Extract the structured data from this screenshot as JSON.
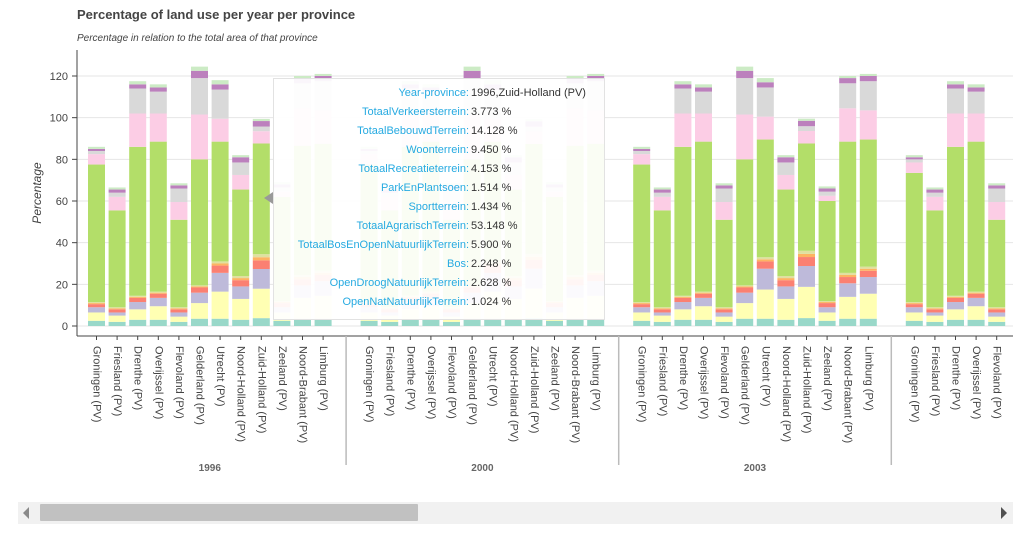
{
  "chart_data": {
    "type": "bar",
    "stacked": true,
    "title": "Percentage of land use per year per province",
    "subtitle": "Percentage in relation to the total area of that province",
    "ylabel": "Percentage",
    "xlabel": "",
    "ylim": [
      0,
      130
    ],
    "y_ticks": [
      0,
      20,
      40,
      60,
      80,
      100,
      120
    ],
    "grid": true,
    "series_names": [
      "TotaalVerkeersterrein",
      "TotaalBebouwdTerrein",
      "Woonterrein",
      "TotaalRecreatieterrein",
      "ParkEnPlantsoen",
      "Sportterrein",
      "TotaalAgrarischTerrein",
      "TotaalBosEnOpenNatuurlijkTerrein",
      "Bos",
      "OpenDroogNatuurlijkTerrein",
      "OpenNatNatuurlijkTerrein"
    ],
    "series_colors": [
      "#99d8c9",
      "#ffffb3",
      "#bebada",
      "#fb8072",
      "#fdb462",
      "#e0e0a0",
      "#b3de69",
      "#fccde5",
      "#d9d9d9",
      "#bc80bd",
      "#ccebc5"
    ],
    "groups": [
      {
        "year": "1996",
        "provinces": [
          {
            "name": "Groningen (PV)",
            "values": [
              2.5,
              4.0,
              2.5,
              1.5,
              0.5,
              0.5,
              66.0,
              5.0,
              1.5,
              1.0,
              1.0
            ]
          },
          {
            "name": "Friesland (PV)",
            "values": [
              2.0,
              3.0,
              1.5,
              1.5,
              0.5,
              0.5,
              46.5,
              6.5,
              2.0,
              1.5,
              1.0
            ]
          },
          {
            "name": "Drenthe (PV)",
            "values": [
              3.0,
              5.0,
              3.5,
              2.0,
              0.5,
              0.5,
              71.5,
              16.0,
              12.0,
              2.0,
              1.5
            ]
          },
          {
            "name": "Overijssel (PV)",
            "values": [
              3.0,
              6.5,
              4.0,
              2.0,
              0.5,
              0.5,
              72.0,
              13.5,
              10.5,
              2.0,
              1.5
            ]
          },
          {
            "name": "Flevoland (PV)",
            "values": [
              2.0,
              2.5,
              2.0,
              1.5,
              0.5,
              0.5,
              42.0,
              8.5,
              6.5,
              1.5,
              1.0
            ]
          },
          {
            "name": "Gelderland (PV)",
            "values": [
              3.5,
              7.5,
              5.0,
              2.5,
              0.5,
              0.5,
              60.5,
              21.5,
              17.5,
              3.5,
              2.0
            ]
          },
          {
            "name": "Utrecht (PV)",
            "values": [
              3.5,
              13.0,
              9.0,
              3.5,
              1.0,
              1.0,
              57.5,
              11.0,
              14.0,
              2.5,
              2.0
            ]
          },
          {
            "name": "Noord-Holland (PV)",
            "values": [
              3.0,
              10.0,
              6.0,
              3.0,
              1.0,
              1.0,
              41.5,
              7.0,
              6.0,
              2.5,
              1.0
            ]
          },
          {
            "name": "Zuid-Holland (PV)",
            "values": [
              3.773,
              14.128,
              9.45,
              4.153,
              1.514,
              1.434,
              53.148,
              5.9,
              2.248,
              2.628,
              1.024
            ]
          },
          {
            "name": "Zeeland (PV)",
            "values": [
              2.5,
              4.0,
              2.5,
              2.0,
              0.5,
              0.5,
              50.0,
              2.5,
              2.0,
              1.5,
              1.0
            ]
          },
          {
            "name": "Noord-Brabant (PV)",
            "values": [
              3.5,
              10.0,
              6.0,
              3.0,
              1.0,
              1.0,
              62.0,
              18.0,
              12.0,
              2.5,
              1.0
            ]
          },
          {
            "name": "Limburg (PV)",
            "values": [
              3.5,
              11.0,
              7.0,
              3.0,
              1.0,
              1.0,
              61.0,
              16.0,
              14.0,
              2.5,
              1.0
            ]
          }
        ]
      },
      {
        "year": "2000",
        "provinces": [
          {
            "name": "Groningen (PV)",
            "values": [
              2.5,
              4.0,
              2.5,
              1.5,
              0.5,
              0.5,
              66.0,
              5.0,
              1.5,
              1.0,
              1.0
            ]
          },
          {
            "name": "Friesland (PV)",
            "values": [
              2.0,
              3.0,
              1.5,
              1.5,
              0.5,
              0.5,
              46.5,
              6.5,
              2.0,
              1.5,
              1.0
            ]
          },
          {
            "name": "Drenthe (PV)",
            "values": [
              3.0,
              5.0,
              3.5,
              2.0,
              0.5,
              0.5,
              71.5,
              16.0,
              12.0,
              2.0,
              1.5
            ]
          },
          {
            "name": "Overijssel (PV)",
            "values": [
              3.0,
              6.5,
              4.0,
              2.0,
              0.5,
              0.5,
              72.0,
              13.5,
              10.5,
              2.0,
              1.5
            ]
          },
          {
            "name": "Flevoland (PV)",
            "values": [
              2.0,
              2.5,
              2.0,
              1.5,
              0.5,
              0.5,
              42.0,
              8.5,
              6.5,
              1.5,
              1.0
            ]
          },
          {
            "name": "Gelderland (PV)",
            "values": [
              3.5,
              7.5,
              5.0,
              2.5,
              0.5,
              0.5,
              60.5,
              21.5,
              17.5,
              3.5,
              2.0
            ]
          },
          {
            "name": "Utrecht (PV)",
            "values": [
              3.5,
              13.0,
              9.0,
              3.5,
              1.0,
              1.0,
              57.5,
              11.0,
              14.0,
              2.5,
              2.0
            ]
          },
          {
            "name": "Noord-Holland (PV)",
            "values": [
              3.0,
              10.0,
              6.0,
              3.0,
              1.0,
              1.0,
              41.5,
              7.0,
              6.0,
              2.5,
              1.0
            ]
          },
          {
            "name": "Zuid-Holland (PV)",
            "values": [
              3.8,
              14.2,
              9.5,
              4.2,
              1.5,
              1.4,
              52.8,
              6.0,
              2.3,
              2.6,
              1.0
            ]
          },
          {
            "name": "Zeeland (PV)",
            "values": [
              2.5,
              4.0,
              2.5,
              2.0,
              0.5,
              0.5,
              50.0,
              2.5,
              2.0,
              1.5,
              1.0
            ]
          },
          {
            "name": "Noord-Brabant (PV)",
            "values": [
              3.5,
              10.0,
              6.0,
              3.0,
              1.0,
              1.0,
              62.0,
              18.0,
              12.0,
              2.5,
              1.0
            ]
          },
          {
            "name": "Limburg (PV)",
            "values": [
              3.5,
              11.0,
              7.0,
              3.0,
              1.0,
              1.0,
              61.0,
              16.0,
              14.0,
              2.5,
              1.0
            ]
          }
        ]
      },
      {
        "year": "2003",
        "provinces": [
          {
            "name": "Groningen (PV)",
            "values": [
              2.5,
              4.0,
              2.5,
              1.5,
              0.5,
              0.5,
              66.0,
              5.0,
              1.5,
              1.0,
              1.0
            ]
          },
          {
            "name": "Friesland (PV)",
            "values": [
              2.0,
              3.0,
              1.5,
              1.5,
              0.5,
              0.5,
              46.5,
              6.5,
              2.0,
              1.5,
              1.0
            ]
          },
          {
            "name": "Drenthe (PV)",
            "values": [
              3.0,
              5.0,
              3.5,
              2.0,
              0.5,
              0.5,
              71.5,
              16.0,
              12.0,
              2.0,
              1.5
            ]
          },
          {
            "name": "Overijssel (PV)",
            "values": [
              3.0,
              6.5,
              4.0,
              2.0,
              0.5,
              0.5,
              72.0,
              13.5,
              10.5,
              2.0,
              1.5
            ]
          },
          {
            "name": "Flevoland (PV)",
            "values": [
              2.0,
              2.5,
              2.0,
              1.5,
              0.5,
              0.5,
              42.0,
              8.5,
              6.5,
              1.5,
              1.0
            ]
          },
          {
            "name": "Gelderland (PV)",
            "values": [
              3.5,
              7.5,
              5.0,
              2.5,
              0.5,
              0.5,
              60.5,
              21.5,
              17.5,
              3.5,
              2.0
            ]
          },
          {
            "name": "Utrecht (PV)",
            "values": [
              3.5,
              14.0,
              10.0,
              3.5,
              1.0,
              1.0,
              56.5,
              11.0,
              14.0,
              2.5,
              2.0
            ]
          },
          {
            "name": "Noord-Holland (PV)",
            "values": [
              3.0,
              10.0,
              6.0,
              3.0,
              1.0,
              1.0,
              41.5,
              7.0,
              6.0,
              2.5,
              1.0
            ]
          },
          {
            "name": "Zuid-Holland (PV)",
            "values": [
              3.8,
              15.0,
              10.0,
              4.3,
              1.5,
              1.5,
              51.5,
              6.0,
              2.3,
              2.6,
              1.0
            ]
          },
          {
            "name": "Zeeland (PV)",
            "values": [
              2.5,
              4.0,
              2.5,
              2.0,
              0.5,
              0.5,
              48.0,
              2.5,
              2.0,
              1.5,
              1.0
            ]
          },
          {
            "name": "Noord-Brabant (PV)",
            "values": [
              3.5,
              10.5,
              6.5,
              3.0,
              1.0,
              1.0,
              63.0,
              16.0,
              12.0,
              2.5,
              1.0
            ]
          },
          {
            "name": "Limburg (PV)",
            "values": [
              3.5,
              12.0,
              8.0,
              3.0,
              1.0,
              1.0,
              61.0,
              14.0,
              14.0,
              2.5,
              1.0
            ]
          }
        ]
      },
      {
        "year": "",
        "provinces": [
          {
            "name": "Groningen (PV)",
            "values": [
              2.5,
              4.0,
              2.5,
              1.5,
              0.5,
              0.5,
              62.0,
              5.0,
              1.5,
              1.0,
              1.0
            ]
          },
          {
            "name": "Friesland (PV)",
            "values": [
              2.0,
              3.0,
              1.5,
              1.5,
              0.5,
              0.5,
              46.5,
              6.5,
              2.0,
              1.5,
              1.0
            ]
          },
          {
            "name": "Drenthe (PV)",
            "values": [
              3.0,
              5.0,
              3.5,
              2.0,
              0.5,
              0.5,
              71.5,
              16.0,
              12.0,
              2.0,
              1.5
            ]
          },
          {
            "name": "Overijssel (PV)",
            "values": [
              3.0,
              6.5,
              4.0,
              2.0,
              0.5,
              0.5,
              72.0,
              13.5,
              10.5,
              2.0,
              1.5
            ]
          },
          {
            "name": "Flevoland (PV)",
            "values": [
              2.0,
              2.5,
              2.0,
              1.5,
              0.5,
              0.5,
              42.0,
              8.5,
              6.5,
              1.5,
              1.0
            ]
          }
        ]
      }
    ]
  },
  "tooltip": {
    "rows": [
      {
        "label": "Year-province:",
        "value": "1996,Zuid-Holland (PV)"
      },
      {
        "label": "TotaalVerkeersterrein:",
        "value": "3.773 %"
      },
      {
        "label": "TotaalBebouwdTerrein:",
        "value": "14.128 %"
      },
      {
        "label": "Woonterrein:",
        "value": "9.450 %"
      },
      {
        "label": "TotaalRecreatieterrein:",
        "value": "4.153 %"
      },
      {
        "label": "ParkEnPlantsoen:",
        "value": "1.514 %"
      },
      {
        "label": "Sportterrein:",
        "value": "1.434 %"
      },
      {
        "label": "TotaalAgrarischTerrein:",
        "value": "53.148 %"
      },
      {
        "label": "TotaalBosEnOpenNatuurlijkTerrein:",
        "value": "5.900 %"
      },
      {
        "label": "Bos:",
        "value": "2.248 %"
      },
      {
        "label": "OpenDroogNatuurlijkTerrein:",
        "value": "2.628 %"
      },
      {
        "label": "OpenNatNatuurlijkTerrein:",
        "value": "1.024 %"
      }
    ]
  },
  "scrollbar": {
    "position_fraction": 0.0,
    "visible_fraction": 0.38
  }
}
